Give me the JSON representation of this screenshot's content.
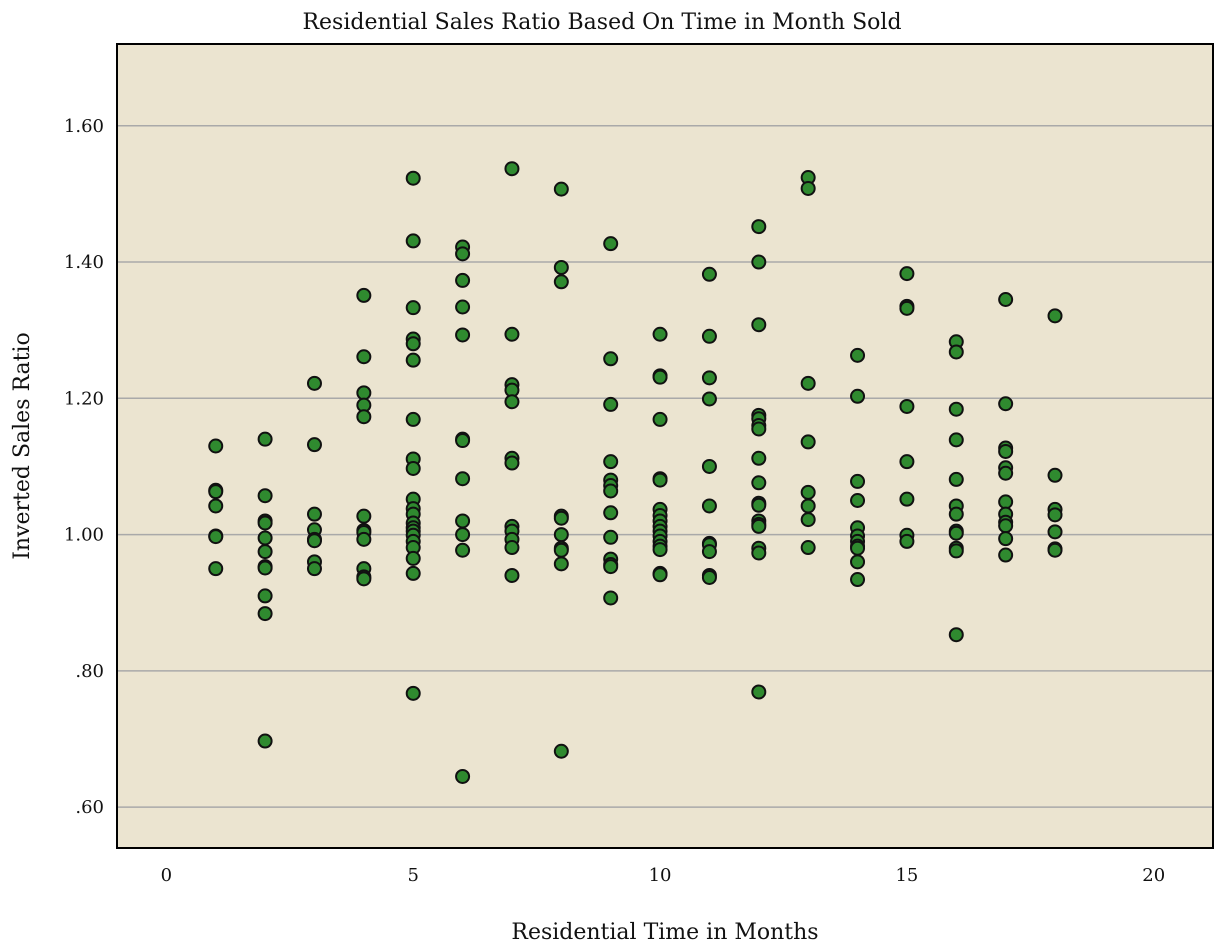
{
  "chart_data": {
    "type": "scatter",
    "title": "Residential Sales Ratio Based On Time in Month Sold",
    "xlabel": "Residential Time in Months",
    "ylabel": "Inverted Sales Ratio",
    "xlim": [
      -1,
      21.2
    ],
    "ylim": [
      0.54,
      1.72
    ],
    "x_ticks": [
      0,
      5,
      10,
      15,
      20
    ],
    "x_tick_labels": [
      "0",
      "5",
      "10",
      "15",
      "20"
    ],
    "y_ticks": [
      0.6,
      0.8,
      1.0,
      1.2,
      1.4,
      1.6
    ],
    "y_tick_labels": [
      ".60",
      ".80",
      "1.00",
      "1.20",
      "1.40",
      "1.60"
    ],
    "grid": "horizontal",
    "colors": {
      "background": "#ebe4d0",
      "grid": "#a9a9a9",
      "marker_fill": "#2f8a2f",
      "marker_edge": "#111111",
      "frame": "#000000"
    },
    "points": [
      {
        "x": 1,
        "y": 1.13
      },
      {
        "x": 1,
        "y": 1.065
      },
      {
        "x": 1,
        "y": 1.063
      },
      {
        "x": 1,
        "y": 1.042
      },
      {
        "x": 1,
        "y": 0.998
      },
      {
        "x": 1,
        "y": 0.997
      },
      {
        "x": 1,
        "y": 0.95
      },
      {
        "x": 2,
        "y": 1.14
      },
      {
        "x": 2,
        "y": 1.057
      },
      {
        "x": 2,
        "y": 1.02
      },
      {
        "x": 2,
        "y": 1.017
      },
      {
        "x": 2,
        "y": 0.995
      },
      {
        "x": 2,
        "y": 0.975
      },
      {
        "x": 2,
        "y": 0.953
      },
      {
        "x": 2,
        "y": 0.951
      },
      {
        "x": 2,
        "y": 0.91
      },
      {
        "x": 2,
        "y": 0.884
      },
      {
        "x": 2,
        "y": 0.697
      },
      {
        "x": 3,
        "y": 1.222
      },
      {
        "x": 3,
        "y": 1.132
      },
      {
        "x": 3,
        "y": 1.03
      },
      {
        "x": 3,
        "y": 1.007
      },
      {
        "x": 3,
        "y": 0.993
      },
      {
        "x": 3,
        "y": 0.991
      },
      {
        "x": 3,
        "y": 0.96
      },
      {
        "x": 3,
        "y": 0.95
      },
      {
        "x": 4,
        "y": 1.351
      },
      {
        "x": 4,
        "y": 1.261
      },
      {
        "x": 4,
        "y": 1.208
      },
      {
        "x": 4,
        "y": 1.19
      },
      {
        "x": 4,
        "y": 1.173
      },
      {
        "x": 4,
        "y": 1.027
      },
      {
        "x": 4,
        "y": 1.006
      },
      {
        "x": 4,
        "y": 1.003
      },
      {
        "x": 4,
        "y": 0.993
      },
      {
        "x": 4,
        "y": 0.95
      },
      {
        "x": 4,
        "y": 0.938
      },
      {
        "x": 4,
        "y": 0.935
      },
      {
        "x": 5,
        "y": 1.523
      },
      {
        "x": 5,
        "y": 1.431
      },
      {
        "x": 5,
        "y": 1.333
      },
      {
        "x": 5,
        "y": 1.287
      },
      {
        "x": 5,
        "y": 1.28
      },
      {
        "x": 5,
        "y": 1.256
      },
      {
        "x": 5,
        "y": 1.169
      },
      {
        "x": 5,
        "y": 1.111
      },
      {
        "x": 5,
        "y": 1.097
      },
      {
        "x": 5,
        "y": 1.052
      },
      {
        "x": 5,
        "y": 1.038
      },
      {
        "x": 5,
        "y": 1.03
      },
      {
        "x": 5,
        "y": 1.017
      },
      {
        "x": 5,
        "y": 1.01
      },
      {
        "x": 5,
        "y": 1.005
      },
      {
        "x": 5,
        "y": 0.999
      },
      {
        "x": 5,
        "y": 0.99
      },
      {
        "x": 5,
        "y": 0.981
      },
      {
        "x": 5,
        "y": 0.965
      },
      {
        "x": 5,
        "y": 0.943
      },
      {
        "x": 5,
        "y": 0.767
      },
      {
        "x": 6,
        "y": 1.422
      },
      {
        "x": 6,
        "y": 1.412
      },
      {
        "x": 6,
        "y": 1.373
      },
      {
        "x": 6,
        "y": 1.334
      },
      {
        "x": 6,
        "y": 1.293
      },
      {
        "x": 6,
        "y": 1.14
      },
      {
        "x": 6,
        "y": 1.138
      },
      {
        "x": 6,
        "y": 1.082
      },
      {
        "x": 6,
        "y": 1.02
      },
      {
        "x": 6,
        "y": 1.0
      },
      {
        "x": 6,
        "y": 0.977
      },
      {
        "x": 6,
        "y": 0.645
      },
      {
        "x": 7,
        "y": 1.537
      },
      {
        "x": 7,
        "y": 1.294
      },
      {
        "x": 7,
        "y": 1.22
      },
      {
        "x": 7,
        "y": 1.212
      },
      {
        "x": 7,
        "y": 1.195
      },
      {
        "x": 7,
        "y": 1.112
      },
      {
        "x": 7,
        "y": 1.105
      },
      {
        "x": 7,
        "y": 1.012
      },
      {
        "x": 7,
        "y": 1.005
      },
      {
        "x": 7,
        "y": 0.993
      },
      {
        "x": 7,
        "y": 0.981
      },
      {
        "x": 7,
        "y": 0.94
      },
      {
        "x": 8,
        "y": 1.507
      },
      {
        "x": 8,
        "y": 1.392
      },
      {
        "x": 8,
        "y": 1.371
      },
      {
        "x": 8,
        "y": 1.027
      },
      {
        "x": 8,
        "y": 1.024
      },
      {
        "x": 8,
        "y": 1.0
      },
      {
        "x": 8,
        "y": 0.98
      },
      {
        "x": 8,
        "y": 0.977
      },
      {
        "x": 8,
        "y": 0.957
      },
      {
        "x": 8,
        "y": 0.682
      },
      {
        "x": 9,
        "y": 1.427
      },
      {
        "x": 9,
        "y": 1.258
      },
      {
        "x": 9,
        "y": 1.191
      },
      {
        "x": 9,
        "y": 1.107
      },
      {
        "x": 9,
        "y": 1.08
      },
      {
        "x": 9,
        "y": 1.072
      },
      {
        "x": 9,
        "y": 1.064
      },
      {
        "x": 9,
        "y": 1.032
      },
      {
        "x": 9,
        "y": 0.996
      },
      {
        "x": 9,
        "y": 0.964
      },
      {
        "x": 9,
        "y": 0.956
      },
      {
        "x": 9,
        "y": 0.953
      },
      {
        "x": 9,
        "y": 0.907
      },
      {
        "x": 10,
        "y": 1.294
      },
      {
        "x": 10,
        "y": 1.233
      },
      {
        "x": 10,
        "y": 1.231
      },
      {
        "x": 10,
        "y": 1.169
      },
      {
        "x": 10,
        "y": 1.082
      },
      {
        "x": 10,
        "y": 1.08
      },
      {
        "x": 10,
        "y": 1.037
      },
      {
        "x": 10,
        "y": 1.028
      },
      {
        "x": 10,
        "y": 1.02
      },
      {
        "x": 10,
        "y": 1.012
      },
      {
        "x": 10,
        "y": 1.005
      },
      {
        "x": 10,
        "y": 0.998
      },
      {
        "x": 10,
        "y": 0.99
      },
      {
        "x": 10,
        "y": 0.983
      },
      {
        "x": 10,
        "y": 0.978
      },
      {
        "x": 10,
        "y": 0.943
      },
      {
        "x": 10,
        "y": 0.941
      },
      {
        "x": 11,
        "y": 1.382
      },
      {
        "x": 11,
        "y": 1.291
      },
      {
        "x": 11,
        "y": 1.23
      },
      {
        "x": 11,
        "y": 1.199
      },
      {
        "x": 11,
        "y": 1.1
      },
      {
        "x": 11,
        "y": 1.042
      },
      {
        "x": 11,
        "y": 0.987
      },
      {
        "x": 11,
        "y": 0.985
      },
      {
        "x": 11,
        "y": 0.975
      },
      {
        "x": 11,
        "y": 0.94
      },
      {
        "x": 11,
        "y": 0.937
      },
      {
        "x": 12,
        "y": 1.452
      },
      {
        "x": 12,
        "y": 1.4
      },
      {
        "x": 12,
        "y": 1.308
      },
      {
        "x": 12,
        "y": 1.175
      },
      {
        "x": 12,
        "y": 1.17
      },
      {
        "x": 12,
        "y": 1.16
      },
      {
        "x": 12,
        "y": 1.155
      },
      {
        "x": 12,
        "y": 1.112
      },
      {
        "x": 12,
        "y": 1.076
      },
      {
        "x": 12,
        "y": 1.046
      },
      {
        "x": 12,
        "y": 1.043
      },
      {
        "x": 12,
        "y": 1.02
      },
      {
        "x": 12,
        "y": 1.015
      },
      {
        "x": 12,
        "y": 1.012
      },
      {
        "x": 12,
        "y": 0.98
      },
      {
        "x": 12,
        "y": 0.973
      },
      {
        "x": 12,
        "y": 0.769
      },
      {
        "x": 13,
        "y": 1.524
      },
      {
        "x": 13,
        "y": 1.508
      },
      {
        "x": 13,
        "y": 1.222
      },
      {
        "x": 13,
        "y": 1.136
      },
      {
        "x": 13,
        "y": 1.062
      },
      {
        "x": 13,
        "y": 1.042
      },
      {
        "x": 13,
        "y": 1.022
      },
      {
        "x": 13,
        "y": 0.981
      },
      {
        "x": 14,
        "y": 1.263
      },
      {
        "x": 14,
        "y": 1.203
      },
      {
        "x": 14,
        "y": 1.078
      },
      {
        "x": 14,
        "y": 1.05
      },
      {
        "x": 14,
        "y": 1.01
      },
      {
        "x": 14,
        "y": 0.998
      },
      {
        "x": 14,
        "y": 0.99
      },
      {
        "x": 14,
        "y": 0.983
      },
      {
        "x": 14,
        "y": 0.98
      },
      {
        "x": 14,
        "y": 0.96
      },
      {
        "x": 14,
        "y": 0.934
      },
      {
        "x": 15,
        "y": 1.383
      },
      {
        "x": 15,
        "y": 1.335
      },
      {
        "x": 15,
        "y": 1.332
      },
      {
        "x": 15,
        "y": 1.188
      },
      {
        "x": 15,
        "y": 1.107
      },
      {
        "x": 15,
        "y": 1.052
      },
      {
        "x": 15,
        "y": 0.999
      },
      {
        "x": 15,
        "y": 0.99
      },
      {
        "x": 16,
        "y": 1.283
      },
      {
        "x": 16,
        "y": 1.268
      },
      {
        "x": 16,
        "y": 1.184
      },
      {
        "x": 16,
        "y": 1.139
      },
      {
        "x": 16,
        "y": 1.081
      },
      {
        "x": 16,
        "y": 1.042
      },
      {
        "x": 16,
        "y": 1.03
      },
      {
        "x": 16,
        "y": 1.005
      },
      {
        "x": 16,
        "y": 1.002
      },
      {
        "x": 16,
        "y": 0.98
      },
      {
        "x": 16,
        "y": 0.976
      },
      {
        "x": 16,
        "y": 0.853
      },
      {
        "x": 17,
        "y": 1.345
      },
      {
        "x": 17,
        "y": 1.192
      },
      {
        "x": 17,
        "y": 1.127
      },
      {
        "x": 17,
        "y": 1.122
      },
      {
        "x": 17,
        "y": 1.098
      },
      {
        "x": 17,
        "y": 1.09
      },
      {
        "x": 17,
        "y": 1.048
      },
      {
        "x": 17,
        "y": 1.03
      },
      {
        "x": 17,
        "y": 1.018
      },
      {
        "x": 17,
        "y": 1.013
      },
      {
        "x": 17,
        "y": 0.994
      },
      {
        "x": 17,
        "y": 0.97
      },
      {
        "x": 18,
        "y": 1.321
      },
      {
        "x": 18,
        "y": 1.087
      },
      {
        "x": 18,
        "y": 1.037
      },
      {
        "x": 18,
        "y": 1.029
      },
      {
        "x": 18,
        "y": 1.004
      },
      {
        "x": 18,
        "y": 0.979
      },
      {
        "x": 18,
        "y": 0.977
      }
    ]
  }
}
